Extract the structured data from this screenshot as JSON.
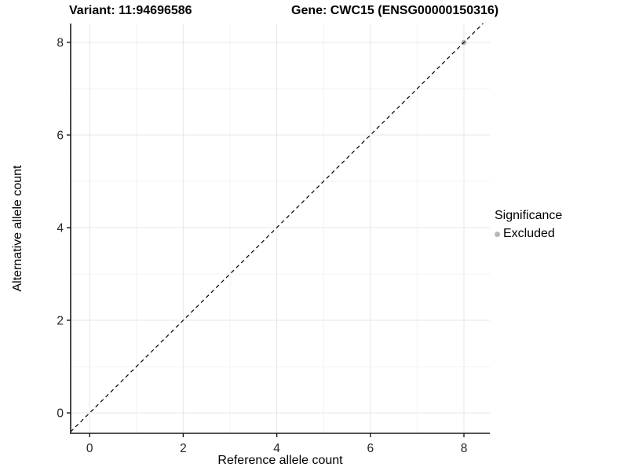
{
  "chart_data": {
    "type": "scatter",
    "title_left": "Variant: 11:94696586",
    "title_right": "Gene: CWC15 (ENSG00000150316)",
    "xlabel": "Reference allele count",
    "ylabel": "Alternative allele count",
    "x_ticks": [
      0,
      2,
      4,
      6,
      8
    ],
    "y_ticks": [
      0,
      2,
      4,
      6,
      8
    ],
    "x_minor_ticks": [
      1,
      3,
      5,
      7
    ],
    "y_minor_ticks": [
      1,
      3,
      5,
      7
    ],
    "xlim": [
      -0.41,
      8.55
    ],
    "ylim": [
      -0.44,
      8.41
    ],
    "grid": "major and minor, light grey on white panel",
    "reference_line": {
      "kind": "identity y = x",
      "style": "dashed",
      "color": "#000000"
    },
    "series": [
      {
        "name": "Excluded",
        "color": "#b9b9b9",
        "marker": "circle",
        "points": [
          {
            "x": 8,
            "y": 8
          }
        ]
      }
    ],
    "legend": {
      "title": "Significance",
      "position": "right",
      "entries": [
        {
          "label": "Excluded",
          "color": "#b9b9b9",
          "marker": "circle"
        }
      ]
    },
    "colors": {
      "background": "#ffffff",
      "major_grid": "#e7e7e7",
      "minor_grid": "#f3f3f3",
      "axis_line": "#1a1a1a",
      "tick_label": "#262626"
    }
  }
}
